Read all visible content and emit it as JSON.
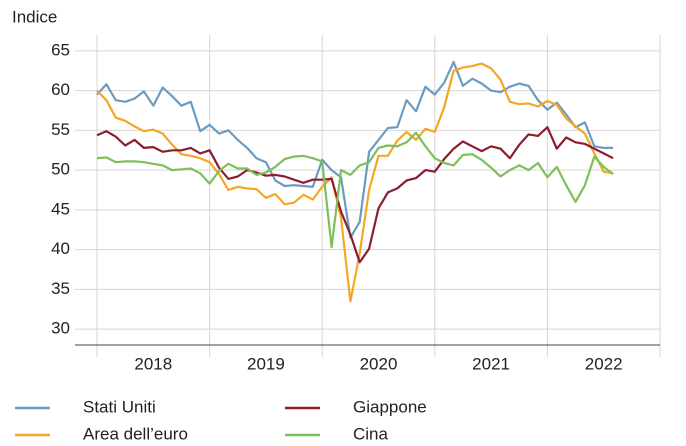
{
  "chart_data": {
    "type": "line",
    "y_label": "Indice",
    "categories": [
      null,
      null,
      null,
      null,
      null,
      null,
      "2018",
      null,
      null,
      null,
      null,
      null,
      null,
      null,
      null,
      null,
      null,
      null,
      "2019",
      null,
      null,
      null,
      null,
      null,
      null,
      null,
      null,
      null,
      null,
      null,
      "2020",
      null,
      null,
      null,
      null,
      null,
      null,
      null,
      null,
      null,
      null,
      null,
      "2021",
      null,
      null,
      null,
      null,
      null,
      null,
      null,
      null,
      null,
      null,
      null,
      "2022",
      null
    ],
    "series": [
      {
        "name": "Stati Uniti",
        "color": "#6b9cc0",
        "values": [
          59.5,
          60.8,
          58.8,
          58.6,
          59.0,
          59.9,
          58.1,
          60.4,
          59.3,
          58.1,
          58.6,
          54.9,
          55.7,
          54.6,
          55.0,
          53.8,
          52.8,
          51.5,
          51.0,
          48.7,
          48.0,
          48.1,
          48.0,
          47.9,
          51.3,
          50.0,
          49.1,
          41.5,
          43.5,
          52.3,
          53.8,
          55.3,
          55.4,
          58.8,
          57.4,
          60.5,
          59.5,
          61.0,
          63.6,
          60.6,
          61.5,
          60.9,
          60.0,
          59.8,
          60.5,
          60.9,
          60.6,
          58.8,
          57.6,
          58.5,
          57.0,
          55.4,
          56.0,
          53.0,
          52.8,
          52.8
        ]
      },
      {
        "name": "Area dell’euro",
        "color": "#f5a623",
        "values": [
          60.0,
          58.8,
          56.6,
          56.2,
          55.5,
          54.9,
          55.1,
          54.6,
          53.2,
          52.0,
          51.8,
          51.5,
          51.0,
          49.5,
          47.5,
          47.9,
          47.7,
          47.6,
          46.5,
          47.0,
          45.7,
          45.9,
          46.9,
          46.3,
          47.9,
          49.1,
          44.0,
          33.5,
          39.5,
          47.5,
          51.8,
          51.8,
          53.7,
          54.8,
          53.8,
          55.2,
          54.8,
          57.9,
          62.5,
          62.9,
          63.1,
          63.4,
          62.8,
          61.4,
          58.6,
          58.3,
          58.4,
          58.0,
          58.7,
          58.2,
          56.5,
          55.5,
          54.6,
          52.1,
          49.8,
          49.6
        ]
      },
      {
        "name": "Giappone",
        "color": "#8b1e2e",
        "values": [
          54.4,
          54.9,
          54.2,
          53.1,
          53.8,
          52.8,
          52.9,
          52.3,
          52.5,
          52.5,
          52.8,
          52.1,
          52.5,
          50.3,
          48.9,
          49.2,
          50.0,
          49.7,
          49.3,
          49.4,
          49.2,
          48.8,
          48.4,
          48.8,
          48.8,
          48.9,
          44.8,
          41.9,
          38.4,
          40.1,
          45.2,
          47.2,
          47.7,
          48.7,
          49.0,
          50.0,
          49.8,
          51.4,
          52.7,
          53.6,
          53.0,
          52.4,
          53.0,
          52.7,
          51.5,
          53.2,
          54.5,
          54.3,
          55.4,
          52.7,
          54.1,
          53.5,
          53.3,
          52.7,
          52.1,
          51.5
        ]
      },
      {
        "name": "Cina",
        "color": "#7fbf5b",
        "values": [
          51.5,
          51.6,
          51.0,
          51.1,
          51.1,
          51.0,
          50.8,
          50.6,
          50.0,
          50.1,
          50.2,
          49.6,
          48.3,
          49.9,
          50.8,
          50.2,
          50.2,
          49.4,
          49.7,
          50.4,
          51.4,
          51.7,
          51.8,
          51.5,
          51.1,
          40.3,
          50.0,
          49.4,
          50.6,
          51.0,
          52.8,
          53.1,
          53.0,
          53.5,
          54.7,
          53.0,
          51.5,
          50.9,
          50.6,
          51.9,
          52.0,
          51.3,
          50.3,
          49.2,
          50.0,
          50.6,
          50.0,
          50.9,
          49.1,
          50.4,
          48.1,
          46.0,
          48.1,
          51.7,
          50.4,
          49.5
        ]
      }
    ],
    "ylim": [
      28,
      67
    ],
    "yticks": [
      30,
      35,
      40,
      45,
      50,
      55,
      60,
      65
    ],
    "grid": true
  }
}
